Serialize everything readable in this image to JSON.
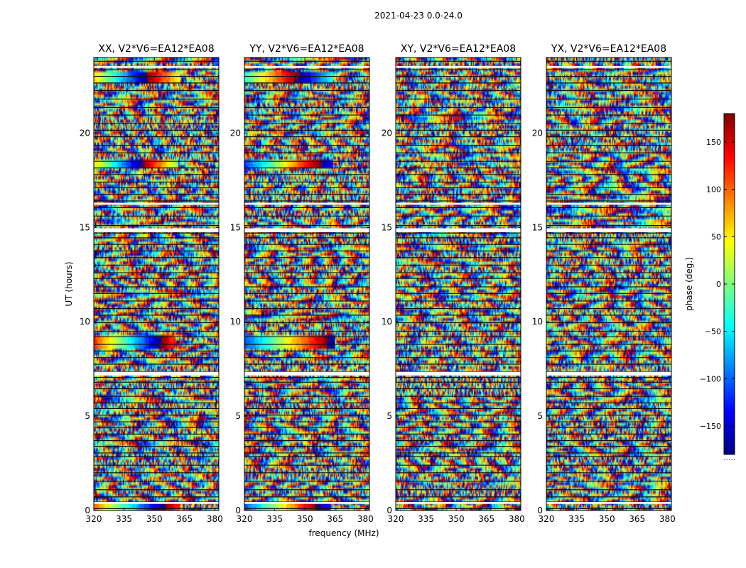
{
  "chart_data": {
    "type": "heatmap",
    "suptitle": "2021-04-23 0.0-24.0",
    "panels": [
      {
        "title": "XX, V2*V6=EA12*EA08",
        "pol": "XX"
      },
      {
        "title": "YY, V2*V6=EA12*EA08",
        "pol": "YY"
      },
      {
        "title": "XY, V2*V6=EA12*EA08",
        "pol": "XY"
      },
      {
        "title": "YX, V2*V6=EA12*EA08",
        "pol": "YX"
      }
    ],
    "xlabel": "frequency (MHz)",
    "ylabel": "UT (hours)",
    "xlim": [
      320,
      382
    ],
    "ylim": [
      0,
      24
    ],
    "xticks": [
      320,
      335,
      350,
      365,
      380
    ],
    "xtick_labels": [
      "320",
      "335",
      "350",
      "365",
      "380"
    ],
    "yticks": [
      0,
      5,
      10,
      15,
      20
    ],
    "ytick_labels": [
      "0",
      "5",
      "10",
      "15",
      "20"
    ],
    "colorbar": {
      "label": "phase (deg.)",
      "vmin": -180,
      "vmax": 180,
      "ticks": [
        150,
        100,
        50,
        0,
        -50,
        -100,
        -150
      ],
      "tick_labels": [
        "150",
        "100",
        "50",
        "0",
        "−50",
        "−100",
        "−150"
      ],
      "colormap": [
        "#00007f",
        "#0000ff",
        "#007fff",
        "#00ffff",
        "#7fff7f",
        "#ffff00",
        "#ff7f00",
        "#ff0000",
        "#7f0000"
      ]
    },
    "gap_rows_ut": [
      0.1,
      0.45,
      0.72,
      1.1,
      1.55,
      2.0,
      2.4,
      2.85,
      3.05,
      3.4,
      3.7,
      4.05,
      4.4,
      4.7,
      5.05,
      5.4,
      5.7,
      6.05,
      6.45,
      6.8,
      7.05,
      7.35,
      7.75,
      8.1,
      8.45,
      8.8,
      9.2,
      9.5,
      9.95,
      10.35,
      10.7,
      11.1,
      11.5,
      11.85,
      12.3,
      12.6,
      13.0,
      13.4,
      13.75,
      14.1,
      14.45,
      14.7,
      15.1,
      15.6,
      16.05,
      16.4,
      16.75,
      17.1,
      17.4,
      17.8,
      18.15,
      18.5,
      18.95,
      19.35,
      19.8,
      20.15,
      20.5,
      20.95,
      21.35,
      21.8,
      22.25,
      22.65,
      23.0,
      23.35,
      23.8
    ],
    "white_gap_ut": [
      [
        0.35,
        0.45
      ],
      [
        7.15,
        7.35
      ],
      [
        14.75,
        14.95
      ],
      [
        16.2,
        16.3
      ],
      [
        23.45,
        23.55
      ]
    ],
    "coherent_bands": [
      {
        "panel": 0,
        "ut": [
          0.0,
          0.5
        ],
        "f_end": 363,
        "phase_start": 100,
        "phase_slope": -8
      },
      {
        "panel": 0,
        "ut": [
          8.6,
          9.3
        ],
        "f_end": 360,
        "phase_start": 120,
        "phase_slope": -9
      },
      {
        "panel": 0,
        "ut": [
          18.2,
          18.6
        ],
        "f_end": 362,
        "phase_start": 60,
        "phase_slope": -10
      },
      {
        "panel": 0,
        "ut": [
          22.6,
          23.3
        ],
        "f_end": 363,
        "phase_start": 60,
        "phase_slope": -9
      },
      {
        "panel": 1,
        "ut": [
          0.0,
          0.5
        ],
        "f_end": 363,
        "phase_start": -110,
        "phase_slope": 8
      },
      {
        "panel": 1,
        "ut": [
          8.6,
          9.3
        ],
        "f_end": 365,
        "phase_start": -110,
        "phase_slope": 7
      },
      {
        "panel": 1,
        "ut": [
          18.2,
          18.6
        ],
        "f_end": 364,
        "phase_start": -120,
        "phase_slope": 8
      },
      {
        "panel": 1,
        "ut": [
          22.6,
          23.3
        ],
        "f_end": 364,
        "phase_start": -30,
        "phase_slope": 8
      }
    ],
    "footnote": "....."
  }
}
